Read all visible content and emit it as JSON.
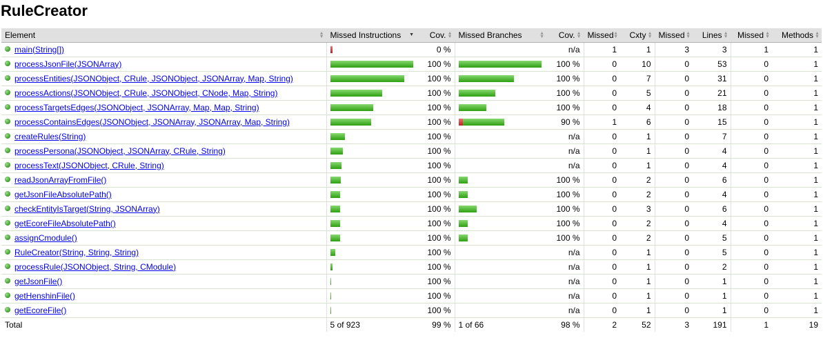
{
  "title": "RuleCreator",
  "headers": {
    "element": "Element",
    "missed_instructions": "Missed Instructions",
    "cov1": "Cov.",
    "missed_branches": "Missed Branches",
    "cov2": "Cov.",
    "missed_cxty": "Missed",
    "cxty": "Cxty",
    "missed_lines": "Missed",
    "lines": "Lines",
    "missed_methods": "Missed",
    "methods": "Methods"
  },
  "rows": [
    {
      "name": "main(String[])",
      "instr_red": 3,
      "instr_green": 0,
      "instr_cov": "0 %",
      "br_red": 0,
      "br_green": 0,
      "br_cov": "n/a",
      "missed_cxty": "1",
      "cxty": "1",
      "missed_lines": "3",
      "lines": "3",
      "missed_methods": "1",
      "methods": "1"
    },
    {
      "name": "processJsonFile(JSONArray)",
      "instr_red": 0,
      "instr_green": 120,
      "instr_cov": "100 %",
      "br_red": 0,
      "br_green": 120,
      "br_cov": "100 %",
      "missed_cxty": "0",
      "cxty": "10",
      "missed_lines": "0",
      "lines": "53",
      "missed_methods": "0",
      "methods": "1"
    },
    {
      "name": "processEntities(JSONObject, CRule, JSONObject, JSONArray, Map, String)",
      "instr_red": 0,
      "instr_green": 107,
      "instr_cov": "100 %",
      "br_red": 0,
      "br_green": 80,
      "br_cov": "100 %",
      "missed_cxty": "0",
      "cxty": "7",
      "missed_lines": "0",
      "lines": "31",
      "missed_methods": "0",
      "methods": "1"
    },
    {
      "name": "processActions(JSONObject, CRule, JSONObject, CNode, Map, String)",
      "instr_red": 0,
      "instr_green": 75,
      "instr_cov": "100 %",
      "br_red": 0,
      "br_green": 53,
      "br_cov": "100 %",
      "missed_cxty": "0",
      "cxty": "5",
      "missed_lines": "0",
      "lines": "21",
      "missed_methods": "0",
      "methods": "1"
    },
    {
      "name": "processTargetsEdges(JSONObject, JSONArray, Map, Map, String)",
      "instr_red": 0,
      "instr_green": 62,
      "instr_cov": "100 %",
      "br_red": 0,
      "br_green": 40,
      "br_cov": "100 %",
      "missed_cxty": "0",
      "cxty": "4",
      "missed_lines": "0",
      "lines": "18",
      "missed_methods": "0",
      "methods": "1"
    },
    {
      "name": "processContainsEdges(JSONObject, JSONArray, JSONArray, Map, String)",
      "instr_red": 0,
      "instr_green": 59,
      "instr_cov": "100 %",
      "br_red": 6,
      "br_green": 60,
      "br_cov": "90 %",
      "missed_cxty": "1",
      "cxty": "6",
      "missed_lines": "0",
      "lines": "15",
      "missed_methods": "0",
      "methods": "1"
    },
    {
      "name": "createRules(String)",
      "instr_red": 0,
      "instr_green": 21,
      "instr_cov": "100 %",
      "br_red": 0,
      "br_green": 0,
      "br_cov": "n/a",
      "missed_cxty": "0",
      "cxty": "1",
      "missed_lines": "0",
      "lines": "7",
      "missed_methods": "0",
      "methods": "1"
    },
    {
      "name": "processPersona(JSONObject, JSONArray, CRule, String)",
      "instr_red": 0,
      "instr_green": 18,
      "instr_cov": "100 %",
      "br_red": 0,
      "br_green": 0,
      "br_cov": "n/a",
      "missed_cxty": "0",
      "cxty": "1",
      "missed_lines": "0",
      "lines": "4",
      "missed_methods": "0",
      "methods": "1"
    },
    {
      "name": "processText(JSONObject, CRule, String)",
      "instr_red": 0,
      "instr_green": 16,
      "instr_cov": "100 %",
      "br_red": 0,
      "br_green": 0,
      "br_cov": "n/a",
      "missed_cxty": "0",
      "cxty": "1",
      "missed_lines": "0",
      "lines": "4",
      "missed_methods": "0",
      "methods": "1"
    },
    {
      "name": "readJsonArrayFromFile()",
      "instr_red": 0,
      "instr_green": 15,
      "instr_cov": "100 %",
      "br_red": 0,
      "br_green": 13,
      "br_cov": "100 %",
      "missed_cxty": "0",
      "cxty": "2",
      "missed_lines": "0",
      "lines": "6",
      "missed_methods": "0",
      "methods": "1"
    },
    {
      "name": "getJsonFileAbsolutePath()",
      "instr_red": 0,
      "instr_green": 14,
      "instr_cov": "100 %",
      "br_red": 0,
      "br_green": 13,
      "br_cov": "100 %",
      "missed_cxty": "0",
      "cxty": "2",
      "missed_lines": "0",
      "lines": "4",
      "missed_methods": "0",
      "methods": "1"
    },
    {
      "name": "checkEntityIsTarget(String, JSONArray)",
      "instr_red": 0,
      "instr_green": 14,
      "instr_cov": "100 %",
      "br_red": 0,
      "br_green": 26,
      "br_cov": "100 %",
      "missed_cxty": "0",
      "cxty": "3",
      "missed_lines": "0",
      "lines": "6",
      "missed_methods": "0",
      "methods": "1"
    },
    {
      "name": "getEcoreFileAbsolutePath()",
      "instr_red": 0,
      "instr_green": 14,
      "instr_cov": "100 %",
      "br_red": 0,
      "br_green": 13,
      "br_cov": "100 %",
      "missed_cxty": "0",
      "cxty": "2",
      "missed_lines": "0",
      "lines": "4",
      "missed_methods": "0",
      "methods": "1"
    },
    {
      "name": "assignCmodule()",
      "instr_red": 0,
      "instr_green": 14,
      "instr_cov": "100 %",
      "br_red": 0,
      "br_green": 13,
      "br_cov": "100 %",
      "missed_cxty": "0",
      "cxty": "2",
      "missed_lines": "0",
      "lines": "5",
      "missed_methods": "0",
      "methods": "1"
    },
    {
      "name": "RuleCreator(String, String, String)",
      "instr_red": 0,
      "instr_green": 7,
      "instr_cov": "100 %",
      "br_red": 0,
      "br_green": 0,
      "br_cov": "n/a",
      "missed_cxty": "0",
      "cxty": "1",
      "missed_lines": "0",
      "lines": "5",
      "missed_methods": "0",
      "methods": "1"
    },
    {
      "name": "processRule(JSONObject, String, CModule)",
      "instr_red": 0,
      "instr_green": 3,
      "instr_cov": "100 %",
      "br_red": 0,
      "br_green": 0,
      "br_cov": "n/a",
      "missed_cxty": "0",
      "cxty": "1",
      "missed_lines": "0",
      "lines": "2",
      "missed_methods": "0",
      "methods": "1"
    },
    {
      "name": "getJsonFile()",
      "instr_red": 0,
      "instr_green": 1,
      "instr_cov": "100 %",
      "br_red": 0,
      "br_green": 0,
      "br_cov": "n/a",
      "missed_cxty": "0",
      "cxty": "1",
      "missed_lines": "0",
      "lines": "1",
      "missed_methods": "0",
      "methods": "1"
    },
    {
      "name": "getHenshinFile()",
      "instr_red": 0,
      "instr_green": 1,
      "instr_cov": "100 %",
      "br_red": 0,
      "br_green": 0,
      "br_cov": "n/a",
      "missed_cxty": "0",
      "cxty": "1",
      "missed_lines": "0",
      "lines": "1",
      "missed_methods": "0",
      "methods": "1"
    },
    {
      "name": "getEcoreFile()",
      "instr_red": 0,
      "instr_green": 1,
      "instr_cov": "100 %",
      "br_red": 0,
      "br_green": 0,
      "br_cov": "n/a",
      "missed_cxty": "0",
      "cxty": "1",
      "missed_lines": "0",
      "lines": "1",
      "missed_methods": "0",
      "methods": "1"
    }
  ],
  "total": {
    "label": "Total",
    "instructions": "5 of 923",
    "instr_cov": "99 %",
    "branches": "1 of 66",
    "br_cov": "98 %",
    "missed_cxty": "2",
    "cxty": "52",
    "missed_lines": "3",
    "lines": "191",
    "missed_methods": "1",
    "methods": "19"
  },
  "colors": {
    "header_bg": "#e0e0e0",
    "link": "#0000ee",
    "bar_green": "#2fa012",
    "bar_red": "#c02020",
    "row_border": "#d6e3ce"
  }
}
